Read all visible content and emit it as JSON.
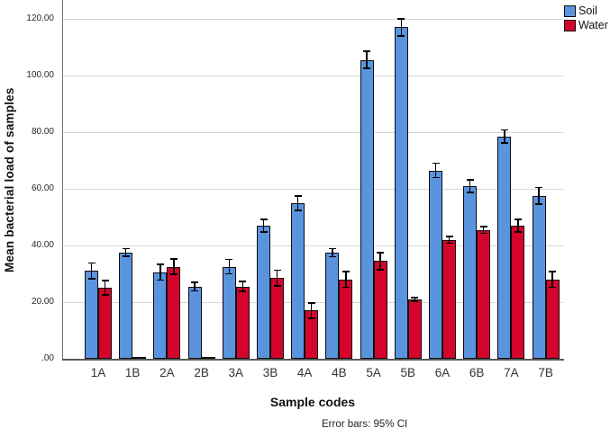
{
  "chart_data": {
    "type": "bar",
    "title": "",
    "categories": [
      "1A",
      "1B",
      "2A",
      "2B",
      "3A",
      "3B",
      "4A",
      "4B",
      "5A",
      "5B",
      "6A",
      "6B",
      "7A",
      "7B"
    ],
    "series": [
      {
        "name": "Soil",
        "color": "#5a94de",
        "values": [
          31,
          37.5,
          30.5,
          25.5,
          32.5,
          47,
          55,
          37.5,
          105.5,
          117,
          66.5,
          61,
          78.5,
          57.5
        ],
        "ci": [
          3,
          1.6,
          3,
          1.8,
          2.8,
          2.5,
          2.8,
          1.7,
          3.3,
          3.2,
          2.8,
          2.5,
          2.5,
          3.2
        ]
      },
      {
        "name": "Water",
        "color": "#d4042d",
        "values": [
          25,
          0.3,
          32.5,
          0.3,
          25.5,
          28.5,
          17,
          28,
          34.5,
          21,
          42,
          45.5,
          47,
          28
        ],
        "ci": [
          2.8,
          0,
          3,
          0,
          2,
          3,
          3,
          3,
          3.3,
          0.9,
          1.5,
          1.5,
          2.5,
          3
        ]
      }
    ],
    "xlabel": "Sample codes",
    "ylabel": "Mean bacterial load of samples",
    "caption": "Error bars: 95% CI",
    "ytick_values": [
      0,
      20,
      40,
      60,
      80,
      100,
      120
    ],
    "ytick_labels": [
      ".00",
      "20.00",
      "40.00",
      "60.00",
      "80.00",
      "100.00",
      "120.00"
    ],
    "ylim": [
      0,
      126
    ],
    "grid": true,
    "legend_position": "top-right",
    "colors": {
      "gridline": "#d6d6d6",
      "axis": "#6e6e6e",
      "error_bar": "#000000",
      "bar_border": "#0d0d0d",
      "background": "#ffffff"
    }
  }
}
